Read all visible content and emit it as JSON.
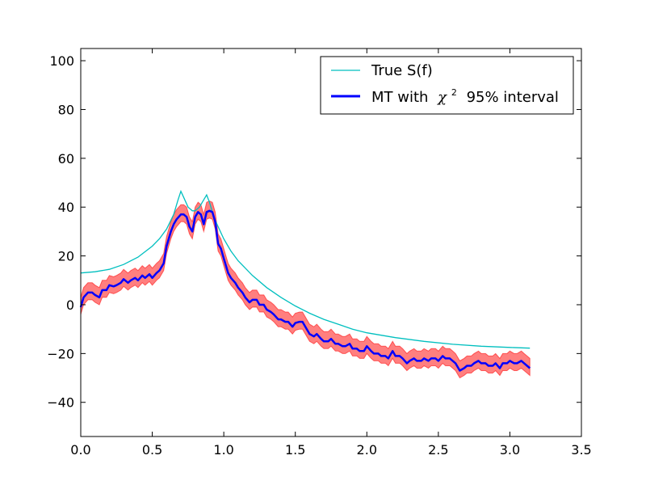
{
  "chart_data": {
    "type": "line",
    "title": "",
    "xlabel": "",
    "ylabel": "",
    "xlim": [
      0.0,
      3.5
    ],
    "ylim": [
      -54,
      105
    ],
    "xticks": [
      0.0,
      0.5,
      1.0,
      1.5,
      2.0,
      2.5,
      3.0,
      3.5
    ],
    "xtick_labels": [
      "0.0",
      "0.5",
      "1.0",
      "1.5",
      "2.0",
      "2.5",
      "3.0",
      "3.5"
    ],
    "yticks": [
      -40,
      -20,
      0,
      20,
      40,
      60,
      80,
      100
    ],
    "ytick_labels": [
      "−40",
      "−20",
      "0",
      "20",
      "40",
      "60",
      "80",
      "100"
    ],
    "grid": false,
    "legend_position": "top-right",
    "colors": {
      "true_sf": "#00bfbf",
      "mt_line": "#0000ff",
      "interval_fill": "#ff0000",
      "interval_fill_opacity": 0.5
    },
    "legend": [
      {
        "label": "True S(f)",
        "series": "true_sf"
      },
      {
        "label_prefix": "MT with",
        "label_math": "χ",
        "label_sup": "2",
        "label_suffix": "95% interval",
        "series": "mt"
      }
    ],
    "series": [
      {
        "name": "True S(f)",
        "x": [
          0.0,
          0.1,
          0.2,
          0.3,
          0.4,
          0.5,
          0.55,
          0.6,
          0.65,
          0.68,
          0.7,
          0.72,
          0.75,
          0.78,
          0.8,
          0.83,
          0.86,
          0.88,
          0.9,
          0.93,
          0.96,
          1.0,
          1.05,
          1.1,
          1.2,
          1.3,
          1.4,
          1.5,
          1.6,
          1.7,
          1.8,
          1.9,
          2.0,
          2.2,
          2.4,
          2.6,
          2.8,
          3.0,
          3.14
        ],
        "y": [
          13,
          13.5,
          14.5,
          16.5,
          19.5,
          24,
          27,
          31,
          37,
          43,
          46.5,
          44,
          40,
          38.5,
          38.5,
          40,
          43,
          45,
          42,
          36,
          32,
          27,
          22,
          18,
          12,
          7,
          3,
          -0.5,
          -3.5,
          -6,
          -8,
          -10,
          -11.5,
          -13.5,
          -15,
          -16.2,
          -17,
          -17.5,
          -17.8
        ]
      },
      {
        "name": "MT with χ² 95% interval",
        "x": [
          0.0,
          0.02,
          0.05,
          0.08,
          0.1,
          0.13,
          0.15,
          0.18,
          0.2,
          0.23,
          0.25,
          0.28,
          0.3,
          0.33,
          0.35,
          0.38,
          0.4,
          0.43,
          0.45,
          0.48,
          0.5,
          0.53,
          0.55,
          0.58,
          0.6,
          0.63,
          0.65,
          0.67,
          0.7,
          0.72,
          0.74,
          0.76,
          0.78,
          0.8,
          0.82,
          0.84,
          0.86,
          0.88,
          0.9,
          0.92,
          0.94,
          0.96,
          0.98,
          1.0,
          1.03,
          1.05,
          1.08,
          1.1,
          1.13,
          1.15,
          1.18,
          1.2,
          1.23,
          1.25,
          1.28,
          1.3,
          1.33,
          1.35,
          1.38,
          1.4,
          1.43,
          1.45,
          1.48,
          1.5,
          1.53,
          1.55,
          1.58,
          1.6,
          1.63,
          1.65,
          1.68,
          1.7,
          1.73,
          1.75,
          1.78,
          1.8,
          1.83,
          1.85,
          1.88,
          1.9,
          1.93,
          1.95,
          1.98,
          2.0,
          2.03,
          2.05,
          2.08,
          2.1,
          2.13,
          2.15,
          2.18,
          2.2,
          2.23,
          2.25,
          2.28,
          2.3,
          2.33,
          2.35,
          2.38,
          2.4,
          2.43,
          2.45,
          2.48,
          2.5,
          2.53,
          2.55,
          2.58,
          2.6,
          2.62,
          2.65,
          2.68,
          2.7,
          2.73,
          2.75,
          2.78,
          2.8,
          2.83,
          2.85,
          2.88,
          2.9,
          2.93,
          2.95,
          2.98,
          3.0,
          3.03,
          3.05,
          3.08,
          3.1,
          3.12,
          3.14
        ],
        "y": [
          -1,
          3,
          5,
          5,
          4,
          3,
          6,
          6,
          8,
          7.5,
          8,
          9,
          10.5,
          9,
          10,
          11,
          10,
          12,
          11,
          12.5,
          11,
          13,
          14,
          17,
          24,
          30,
          33,
          35,
          37,
          37,
          36,
          32,
          30,
          36,
          38,
          37,
          33,
          38,
          38.5,
          38,
          34,
          25,
          23,
          19,
          13,
          11,
          9,
          7,
          5,
          3,
          1,
          2,
          2,
          0,
          0,
          -2,
          -3,
          -4,
          -6,
          -6,
          -7,
          -7,
          -9,
          -7.5,
          -7,
          -7,
          -10,
          -12,
          -13,
          -12,
          -14,
          -15,
          -15,
          -14,
          -16,
          -16,
          -17,
          -17,
          -16,
          -18,
          -18,
          -19,
          -19,
          -17,
          -19,
          -20,
          -20,
          -21,
          -21,
          -22,
          -19,
          -21,
          -21,
          -22,
          -24,
          -23,
          -22,
          -23,
          -23,
          -22,
          -23,
          -22,
          -22,
          -23,
          -21,
          -22,
          -22,
          -23,
          -24,
          -27,
          -26,
          -25,
          -25,
          -24,
          -23,
          -24,
          -24,
          -25,
          -25,
          -24,
          -26,
          -24,
          -24,
          -23,
          -24,
          -24,
          -23,
          -24,
          -25,
          -26
        ],
        "lower": [
          -4,
          0,
          2,
          2,
          1,
          0,
          3,
          3,
          5,
          4.5,
          5,
          6,
          7.5,
          6,
          7,
          8,
          7,
          9,
          8,
          9.5,
          8,
          10,
          11,
          14,
          21,
          27,
          30,
          32,
          34,
          34,
          33,
          29,
          27,
          33,
          35,
          34,
          30,
          35,
          35.5,
          35,
          31,
          22,
          20,
          16,
          10,
          8,
          6,
          4,
          2,
          0,
          -2,
          -1,
          -1,
          -3,
          -3,
          -5,
          -6,
          -7,
          -9,
          -9,
          -10,
          -10,
          -12,
          -10.5,
          -10,
          -10,
          -13,
          -15,
          -16,
          -15,
          -17,
          -18,
          -18,
          -17,
          -19,
          -19,
          -20,
          -20,
          -19,
          -21,
          -21,
          -22,
          -22,
          -20,
          -22,
          -23,
          -23,
          -24,
          -24,
          -25,
          -22,
          -24,
          -24,
          -25,
          -27,
          -26,
          -25,
          -26,
          -26,
          -25,
          -26,
          -25,
          -25,
          -26,
          -24,
          -25,
          -25,
          -26,
          -27,
          -30,
          -29,
          -28,
          -28,
          -27,
          -26,
          -27,
          -27,
          -28,
          -28,
          -27,
          -29,
          -27,
          -27,
          -26,
          -27,
          -27,
          -26,
          -27,
          -28,
          -29
        ],
        "upper": [
          3,
          7,
          9,
          9,
          8,
          7,
          10,
          10,
          12,
          11.5,
          12,
          13,
          14.5,
          13,
          14,
          15,
          14,
          16,
          15,
          16.5,
          15,
          17,
          18,
          21,
          28,
          34,
          37,
          39,
          41,
          41,
          40,
          36,
          34,
          40,
          42,
          41,
          37,
          42,
          42.5,
          42,
          38,
          29,
          27,
          23,
          17,
          15,
          13,
          11,
          9,
          7,
          5,
          6,
          6,
          4,
          4,
          2,
          1,
          0,
          -2,
          -2,
          -3,
          -3,
          -5,
          -3.5,
          -3,
          -3,
          -6,
          -8,
          -9,
          -8,
          -10,
          -11,
          -11,
          -10,
          -12,
          -12,
          -13,
          -13,
          -12,
          -14,
          -14,
          -15,
          -15,
          -13,
          -15,
          -16,
          -16,
          -17,
          -17,
          -18,
          -15,
          -17,
          -17,
          -18,
          -20,
          -19,
          -18,
          -19,
          -19,
          -18,
          -19,
          -18,
          -18,
          -19,
          -17,
          -18,
          -18,
          -19,
          -20,
          -23,
          -22,
          -21,
          -21,
          -20,
          -19,
          -20,
          -20,
          -21,
          -21,
          -20,
          -22,
          -20,
          -20,
          -19,
          -20,
          -20,
          -19,
          -20,
          -21,
          -22
        ]
      }
    ]
  }
}
